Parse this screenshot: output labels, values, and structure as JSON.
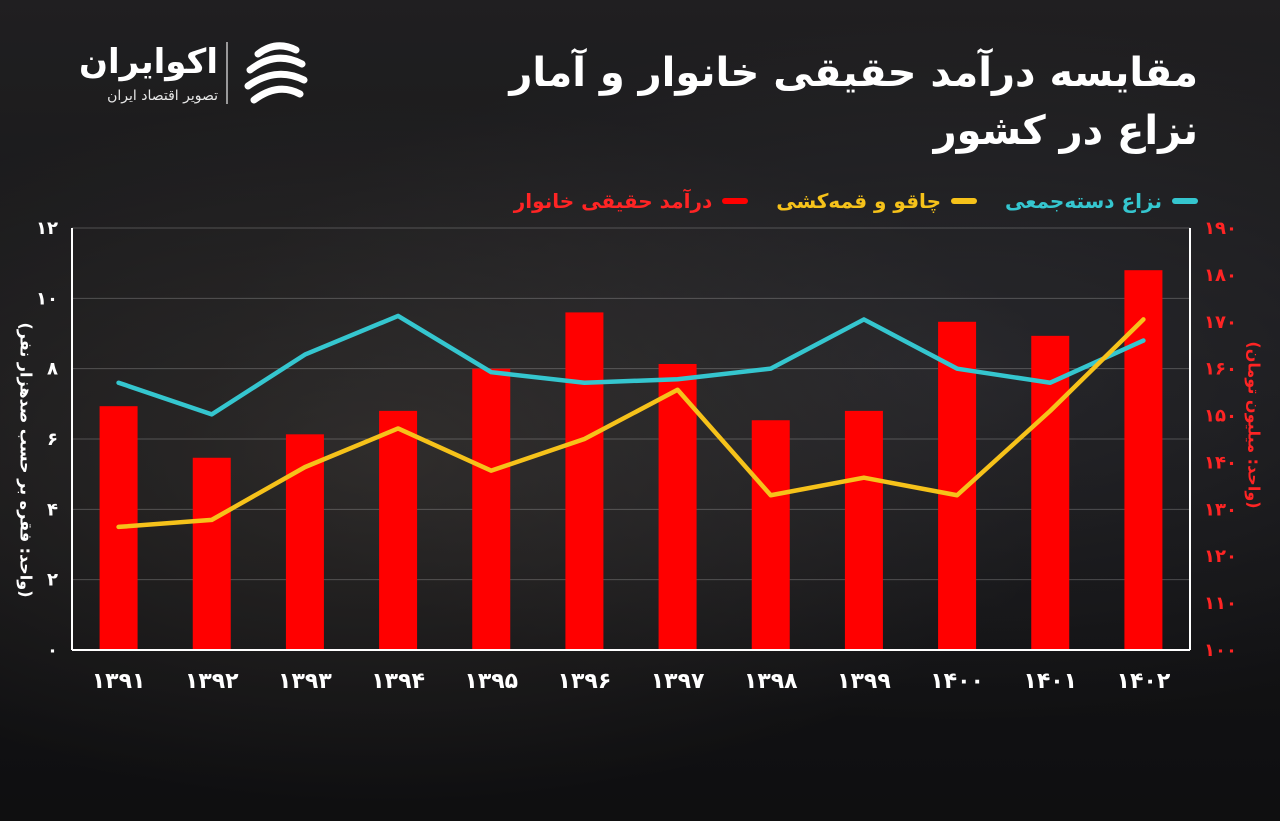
{
  "brand": {
    "name": "اکوایران",
    "tagline": "تصویر اقتصاد ایران"
  },
  "chart_data": {
    "type": "bar",
    "title": "مقایسه درآمد حقیقی خانوار و آمار نزاع در کشور",
    "categories": [
      "۱۳۹۱",
      "۱۳۹۲",
      "۱۳۹۳",
      "۱۳۹۴",
      "۱۳۹۵",
      "۱۳۹۶",
      "۱۳۹۷",
      "۱۳۹۸",
      "۱۳۹۹",
      "۱۴۰۰",
      "۱۴۰۱",
      "۱۴۰۲"
    ],
    "ylabel_left": "(واحد: فقره بر حسب صدهزار نفر)",
    "ylabel_right": "(واحد: میلیون تومان)",
    "ylim_left": [
      0,
      12
    ],
    "ylim_right": [
      100,
      190
    ],
    "yticks_left": [
      "۰",
      "۲",
      "۴",
      "۶",
      "۸",
      "۱۰",
      "۱۲"
    ],
    "yticks_right": [
      "۱۰۰",
      "۱۱۰",
      "۱۲۰",
      "۱۳۰",
      "۱۴۰",
      "۱۵۰",
      "۱۶۰",
      "۱۷۰",
      "۱۸۰",
      "۱۹۰"
    ],
    "grid": true,
    "legend_position": "top",
    "series": [
      {
        "name": "نزاع دسته‌جمعی",
        "type": "line",
        "axis": "left",
        "color": "#35c6cf",
        "values": [
          7.6,
          6.7,
          8.4,
          9.5,
          7.9,
          7.6,
          7.7,
          8.0,
          9.4,
          8.0,
          7.6,
          8.8
        ]
      },
      {
        "name": "چاقو و قمه‌کشی",
        "type": "line",
        "axis": "left",
        "color": "#f6c21a",
        "values": [
          3.5,
          3.7,
          5.2,
          6.3,
          5.1,
          6.0,
          7.4,
          4.4,
          4.9,
          4.4,
          6.8,
          9.4
        ]
      },
      {
        "name": "درآمد حقیقی خانوار",
        "type": "bar",
        "axis": "right",
        "color": "#ff0000",
        "values": [
          152,
          141,
          146,
          151,
          160,
          172,
          161,
          149,
          151,
          170,
          167,
          181
        ]
      }
    ]
  }
}
